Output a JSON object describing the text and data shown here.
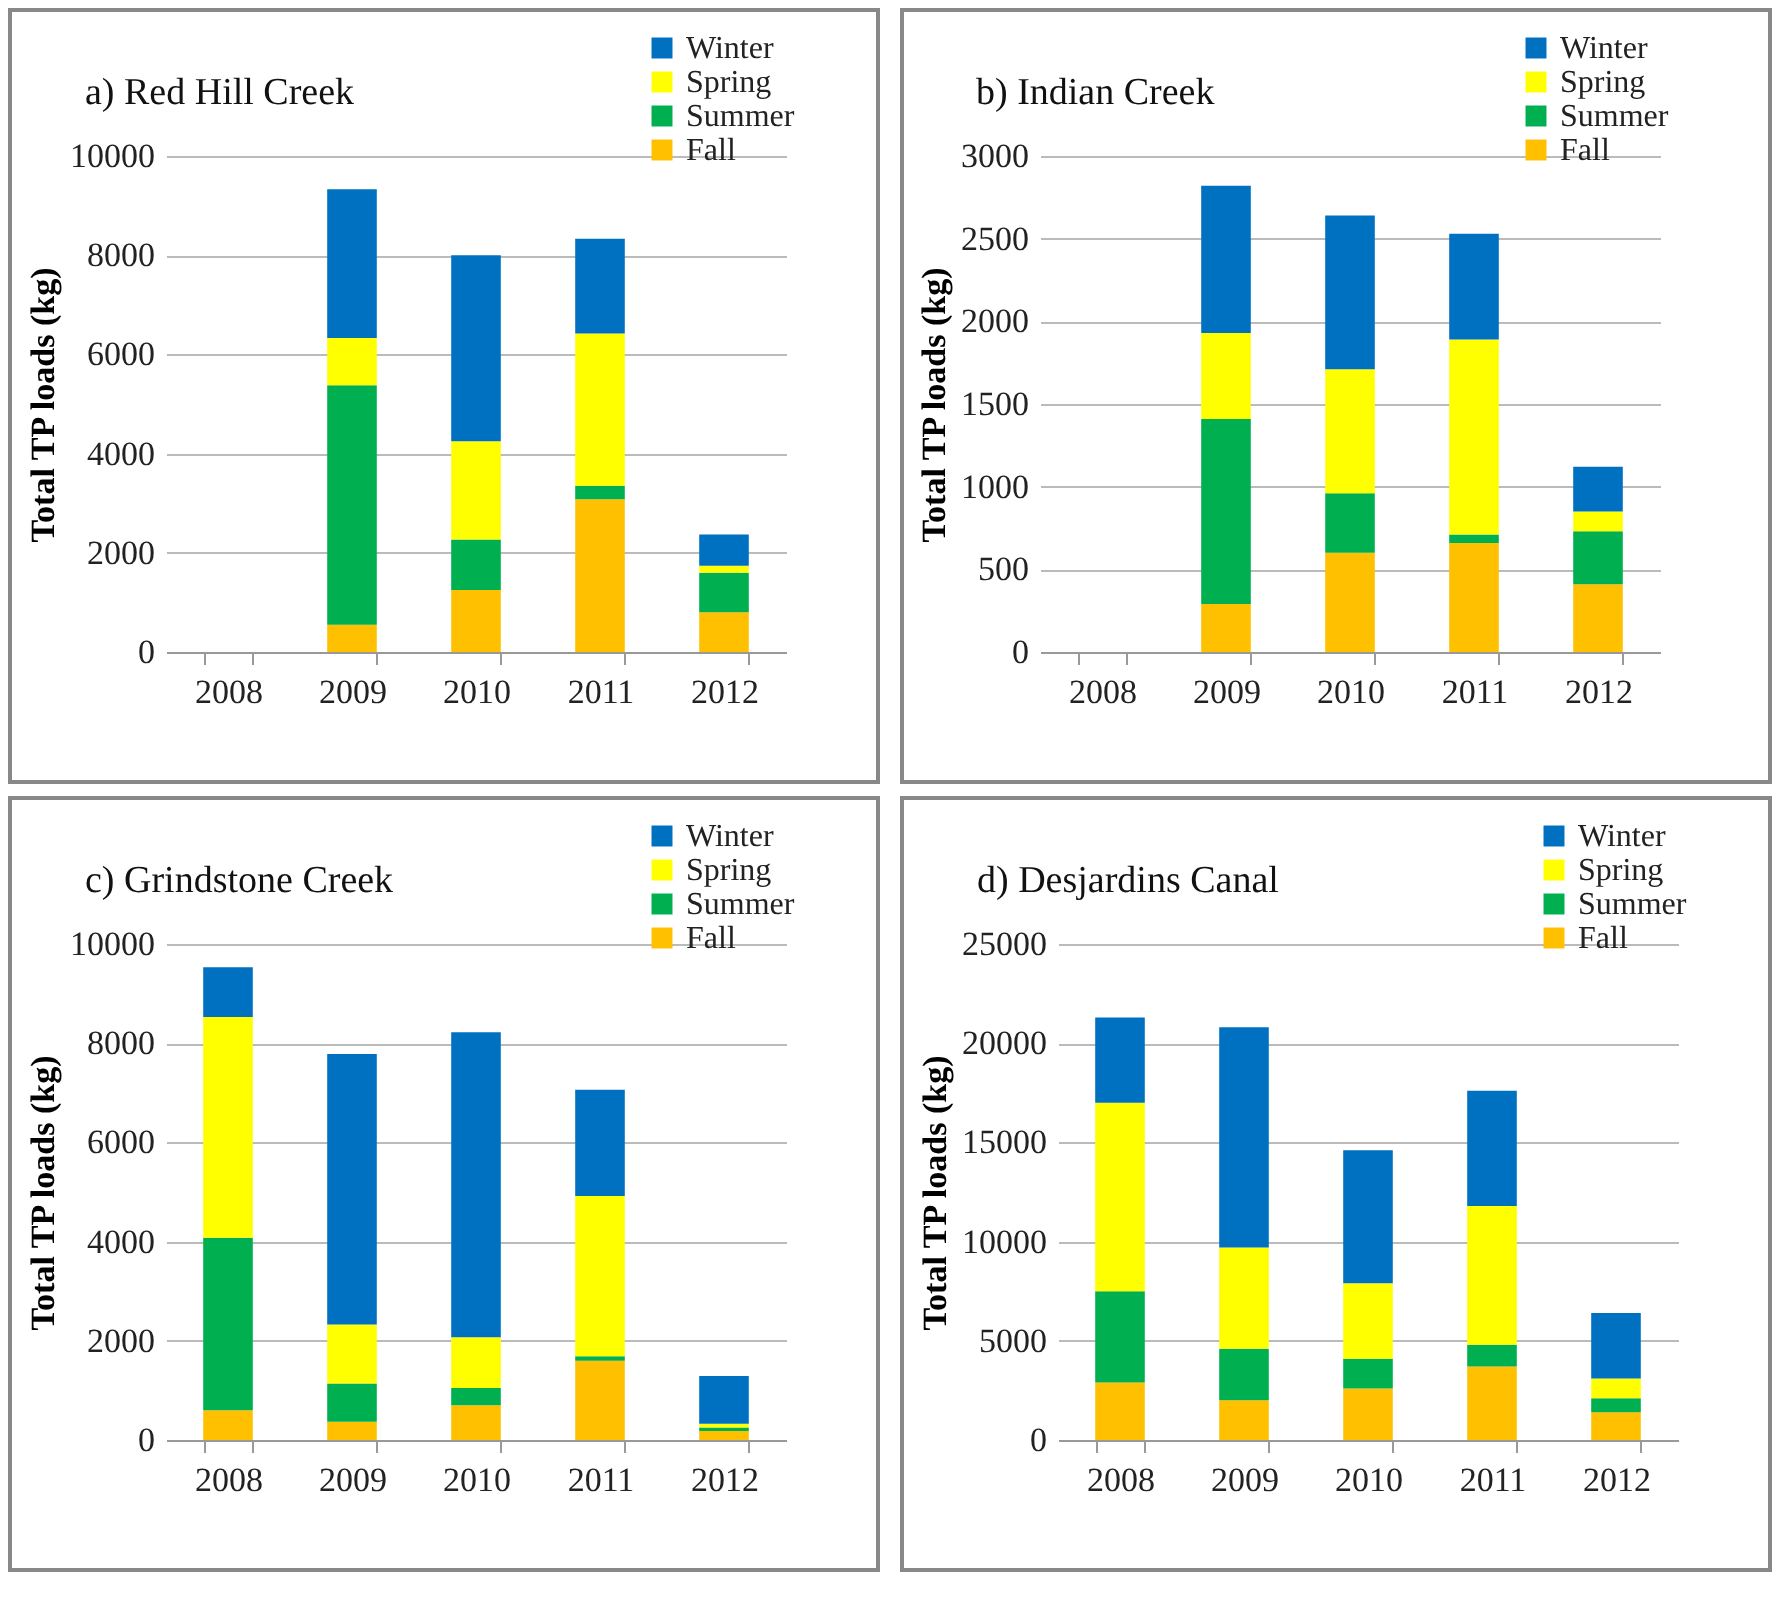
{
  "chart_data": [
    {
      "type": "bar",
      "title": "a) Red Hill Creek",
      "ylabel": "Total TP loads (kg)",
      "categories": [
        "2008",
        "2009",
        "2010",
        "2011",
        "2012"
      ],
      "stacked": true,
      "ylim": [
        0,
        10000
      ],
      "yticks": [
        0,
        2000,
        4000,
        6000,
        8000,
        10000
      ],
      "grid": "y",
      "legend": "top right",
      "series": [
        {
          "name": "Fall",
          "color": "#ffc000",
          "values": [
            null,
            550,
            1250,
            3080,
            800
          ]
        },
        {
          "name": "Summer",
          "color": "#00b050",
          "values": [
            null,
            4830,
            1020,
            270,
            800
          ]
        },
        {
          "name": "Spring",
          "color": "#ffff00",
          "values": [
            null,
            950,
            1980,
            3070,
            140
          ]
        },
        {
          "name": "Winter",
          "color": "#0070c0",
          "values": [
            null,
            3000,
            3750,
            1910,
            630
          ]
        }
      ]
    },
    {
      "type": "bar",
      "title": "b) Indian Creek",
      "ylabel": "Total TP loads (kg)",
      "categories": [
        "2008",
        "2009",
        "2010",
        "2011",
        "2012"
      ],
      "stacked": true,
      "ylim": [
        0,
        3000
      ],
      "yticks": [
        0,
        500,
        1000,
        1500,
        2000,
        2500,
        3000
      ],
      "grid": "y",
      "legend": "top right",
      "series": [
        {
          "name": "Fall",
          "color": "#ffc000",
          "values": [
            null,
            290,
            600,
            660,
            410
          ]
        },
        {
          "name": "Summer",
          "color": "#00b050",
          "values": [
            null,
            1120,
            360,
            50,
            320
          ]
        },
        {
          "name": "Spring",
          "color": "#ffff00",
          "values": [
            null,
            520,
            750,
            1180,
            120
          ]
        },
        {
          "name": "Winter",
          "color": "#0070c0",
          "values": [
            null,
            890,
            930,
            640,
            270
          ]
        }
      ]
    },
    {
      "type": "bar",
      "title": "c) Grindstone Creek",
      "ylabel": "Total TP loads (kg)",
      "categories": [
        "2008",
        "2009",
        "2010",
        "2011",
        "2012"
      ],
      "stacked": true,
      "ylim": [
        0,
        10000
      ],
      "yticks": [
        0,
        2000,
        4000,
        6000,
        8000,
        10000
      ],
      "grid": "y",
      "legend": "top right",
      "series": [
        {
          "name": "Fall",
          "color": "#ffc000",
          "values": [
            600,
            370,
            700,
            1600,
            180
          ]
        },
        {
          "name": "Summer",
          "color": "#00b050",
          "values": [
            3480,
            770,
            350,
            90,
            70
          ]
        },
        {
          "name": "Spring",
          "color": "#ffff00",
          "values": [
            4450,
            1190,
            1020,
            3230,
            80
          ]
        },
        {
          "name": "Winter",
          "color": "#0070c0",
          "values": [
            1000,
            5450,
            6150,
            2140,
            960
          ]
        }
      ]
    },
    {
      "type": "bar",
      "title": "d) Desjardins Canal",
      "ylabel": "Total TP loads (kg)",
      "categories": [
        "2008",
        "2009",
        "2010",
        "2011",
        "2012"
      ],
      "stacked": true,
      "ylim": [
        0,
        25000
      ],
      "yticks": [
        0,
        5000,
        10000,
        15000,
        20000,
        25000
      ],
      "grid": "y",
      "legend": "top right",
      "series": [
        {
          "name": "Fall",
          "color": "#ffc000",
          "values": [
            2900,
            2000,
            2600,
            3700,
            1400
          ]
        },
        {
          "name": "Summer",
          "color": "#00b050",
          "values": [
            4600,
            2600,
            1500,
            1100,
            700
          ]
        },
        {
          "name": "Spring",
          "color": "#ffff00",
          "values": [
            9500,
            5100,
            3800,
            7000,
            1000
          ]
        },
        {
          "name": "Winter",
          "color": "#0070c0",
          "values": [
            4300,
            11100,
            6700,
            5800,
            3300
          ]
        }
      ]
    }
  ]
}
